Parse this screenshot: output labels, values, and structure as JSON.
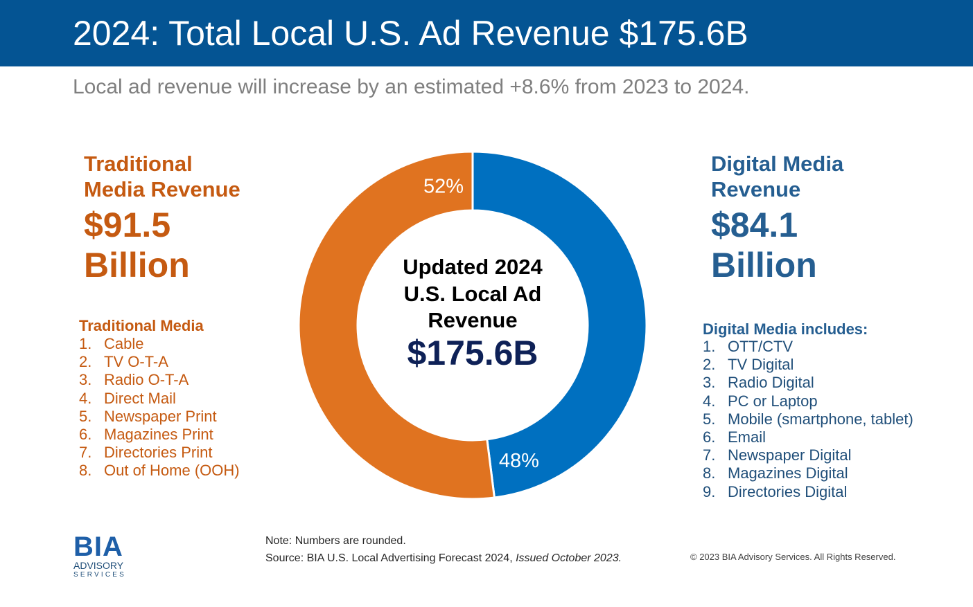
{
  "header": {
    "title": "2024: Total Local U.S. Ad Revenue $175.6B",
    "subtitle": "Local ad revenue will increase by an estimated +8.6% from 2023 to 2024."
  },
  "traditional": {
    "heading_line1": "Traditional",
    "heading_line2": "Media Revenue",
    "amount_line1": "$91.5",
    "amount_line2": "Billion",
    "list_title": "Traditional Media",
    "items": [
      {
        "num": "1.",
        "label": "Cable"
      },
      {
        "num": "2.",
        "label": "TV O-T-A"
      },
      {
        "num": "3.",
        "label": "Radio O-T-A"
      },
      {
        "num": "4.",
        "label": "Direct Mail"
      },
      {
        "num": "5.",
        "label": "Newspaper Print"
      },
      {
        "num": "6.",
        "label": "Magazines Print"
      },
      {
        "num": "7.",
        "label": "Directories Print"
      },
      {
        "num": "8.",
        "label": "Out of Home (OOH)"
      }
    ]
  },
  "digital": {
    "heading_line1": "Digital Media",
    "heading_line2": "Revenue",
    "amount_line1": "$84.1",
    "amount_line2": "Billion",
    "list_title": "Digital Media includes:",
    "items": [
      {
        "num": "1.",
        "label": "OTT/CTV"
      },
      {
        "num": "2.",
        "label": "TV Digital"
      },
      {
        "num": "3.",
        "label": "Radio Digital"
      },
      {
        "num": "4.",
        "label": "PC or Laptop"
      },
      {
        "num": "5.",
        "label": "Mobile (smartphone, tablet)"
      },
      {
        "num": "6.",
        "label": "Email"
      },
      {
        "num": "7.",
        "label": "Newspaper Digital"
      },
      {
        "num": "8.",
        "label": "Magazines Digital"
      },
      {
        "num": "9.",
        "label": "Directories Digital"
      }
    ]
  },
  "center": {
    "line1": "Updated 2024",
    "line2": "U.S. Local Ad",
    "line3": "Revenue",
    "total": "$175.6B"
  },
  "footer": {
    "note": "Note: Numbers are rounded.",
    "source_main": "Source: BIA U.S. Local Advertising Forecast 2024, ",
    "source_issued": "Issued October 2023.",
    "copyright": "© 2023 BIA Advisory Services. All Rights Reserved."
  },
  "logo": {
    "mark": "BIA",
    "line1": "ADVISORY",
    "line2": "SERVICES"
  },
  "colors": {
    "header_bg": "#045493",
    "traditional": "#e07320",
    "digital": "#0070c0"
  },
  "chart_data": {
    "type": "pie",
    "title": "Updated 2024 U.S. Local Ad Revenue",
    "total_label": "$175.6B",
    "slices": [
      {
        "name": "Digital Media Revenue",
        "value": 48,
        "label": "48%",
        "amount_billion": 84.1,
        "color": "#0070c0"
      },
      {
        "name": "Traditional Media Revenue",
        "value": 52,
        "label": "52%",
        "amount_billion": 91.5,
        "color": "#e07320"
      }
    ],
    "start_angle_deg": 0,
    "direction": "clockwise",
    "hole": "donut"
  }
}
